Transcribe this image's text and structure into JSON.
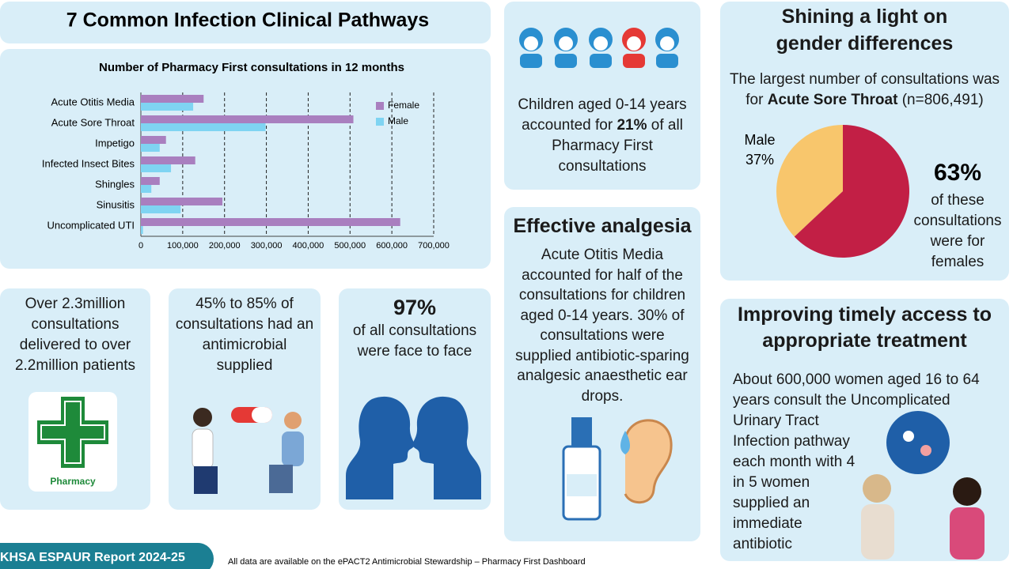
{
  "title": "7 Common Infection Clinical Pathways",
  "chart_data": [
    {
      "type": "bar",
      "orientation": "horizontal",
      "title": "Number of Pharmacy First consultations in 12 months",
      "categories": [
        "Acute Otitis Media",
        "Acute Sore Throat",
        "Impetigo",
        "Infected Insect Bites",
        "Shingles",
        "Sinusitis",
        "Uncomplicated UTI"
      ],
      "series": [
        {
          "name": "Female",
          "color": "#a97fbf",
          "values": [
            150000,
            508000,
            60000,
            130000,
            45000,
            195000,
            620000
          ]
        },
        {
          "name": "Male",
          "color": "#7fd4f2",
          "values": [
            125000,
            298000,
            45000,
            72000,
            25000,
            95000,
            5000
          ]
        }
      ],
      "xlim": [
        0,
        700000
      ],
      "xticks": [
        0,
        {
          "value": 100000,
          "label": "100,000"
        },
        {
          "value": 200000,
          "label": "200,000"
        },
        {
          "value": 300000,
          "label": "300,000"
        },
        {
          "value": 400000,
          "label": "400,000"
        },
        {
          "value": 500000,
          "label": "500,000"
        },
        {
          "value": 600000,
          "label": "600,000"
        },
        {
          "value": 700000,
          "label": "700,000"
        }
      ],
      "grid": true,
      "legend": "top-right"
    },
    {
      "type": "pie",
      "categories": [
        "Male",
        null
      ],
      "values": [
        37,
        63
      ],
      "value_labels": [
        "37%",
        "63%"
      ],
      "colors": [
        "#f8c66c",
        "#c21f45"
      ]
    }
  ],
  "panels": {
    "children": {
      "before": "Children aged 0-14 years accounted for",
      "highlight": "21%",
      "after": "of all Pharmacy First consultations"
    },
    "gender": {
      "title": "Shining a light on gender differences",
      "before": "The largest number of consultations was for",
      "highlight": "Acute Sore Throat",
      "after": "(n=806,491)",
      "female_caption": "of these consultations were for females"
    },
    "analgesia": {
      "title": "Effective analgesia",
      "text": "Acute Otitis Media accounted for half of the consultations for children aged 0-14 years. 30% of consultations were supplied antibiotic-sparing analgesic anaesthetic ear drops."
    },
    "volume": {
      "text": "Over 2.3million consultations delivered to over 2.2million patients",
      "icon_label": "Pharmacy"
    },
    "antimicrobial": {
      "text": "45% to 85% of consultations had an antimicrobial supplied"
    },
    "face_to_face": {
      "highlight": "97%",
      "text": "of all consultations were face to face"
    },
    "access": {
      "title": "Improving timely access to appropriate treatment",
      "text": "About 600,000 women aged 16 to 64 years consult the Uncomplicated Urinary Tract Infection pathway each month with 4 in 5 women supplied an immediate antibiotic"
    }
  },
  "footer": {
    "report": "KHSA ESPAUR Report 2024-25",
    "note": "All data are available on the ePACT2 Antimicrobial Stewardship – Pharmacy First Dashboard"
  }
}
